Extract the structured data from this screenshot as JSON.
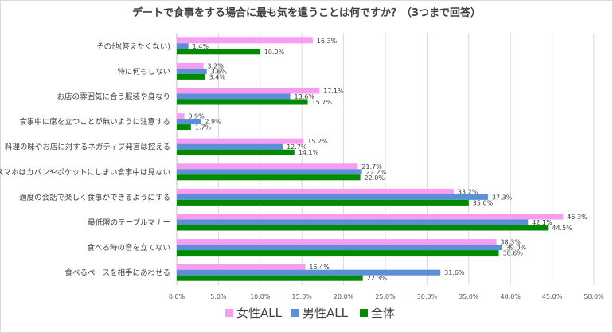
{
  "chart_data": {
    "type": "bar",
    "orientation": "horizontal",
    "title": "デートで食事をする場合に最も気を遣うことは何ですか？（3つまで回答）",
    "categories": [
      "その他(答えたくない)",
      "特に何もしない",
      "お店の雰囲気に合う服装や身なり",
      "食事中に席を立つことが無いように注意する",
      "料理の味やお店に対するネガティブ発言は控える",
      "スマホはカバンやポケットにしまい食事中は見ない",
      "適度の会話で楽しく食事ができるようにする",
      "最低限のテーブルマナー",
      "食べる時の音を立てない",
      "食べるペースを相手にあわせる"
    ],
    "series": [
      {
        "name": "女性ALL",
        "color": "#f79cf0",
        "values": [
          16.3,
          3.2,
          17.1,
          0.9,
          15.2,
          21.7,
          33.2,
          46.3,
          38.3,
          15.4
        ]
      },
      {
        "name": "男性ALL",
        "color": "#5b8fd6",
        "values": [
          1.4,
          3.6,
          13.6,
          2.9,
          12.7,
          22.2,
          37.3,
          42.1,
          39.0,
          31.6
        ]
      },
      {
        "name": "全体",
        "color": "#008a00",
        "values": [
          10.0,
          3.4,
          15.7,
          1.7,
          14.1,
          22.0,
          35.0,
          44.5,
          38.6,
          22.3
        ]
      }
    ],
    "xlim": [
      0,
      50
    ],
    "xticks": [
      "0.0%",
      "5.0%",
      "10.0%",
      "15.0%",
      "20.0%",
      "25.0%",
      "30.0%",
      "35.0%",
      "40.0%",
      "45.0%",
      "50.0%"
    ],
    "xlabel": "",
    "ylabel": "",
    "grid": true,
    "legend_position": "bottom"
  }
}
